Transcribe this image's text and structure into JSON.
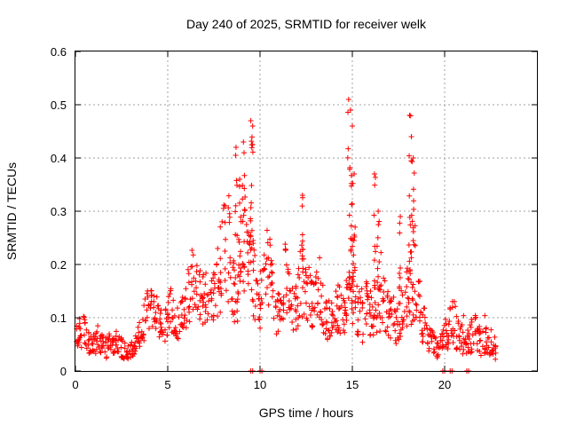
{
  "chart_data": {
    "type": "scatter",
    "title": "Day 240 of 2025, SRMTID for receiver welk",
    "xlabel": "GPS time / hours",
    "ylabel": "SRMTID / TECUs",
    "xlim": [
      0,
      25
    ],
    "ylim": [
      0,
      0.6
    ],
    "xticks": [
      0,
      5,
      10,
      15,
      20
    ],
    "yticks": [
      0,
      0.1,
      0.2,
      0.3,
      0.4,
      0.5,
      0.6
    ],
    "xtick_labels": [
      "0",
      "5",
      "10",
      "15",
      "20"
    ],
    "ytick_labels": [
      "0",
      "0.1",
      "0.2",
      "0.3",
      "0.4",
      "0.5",
      "0.6"
    ],
    "grid": true,
    "color": "#ff0000",
    "marker": "plus",
    "series": [
      {
        "name": "SRMTID",
        "x": [
          0.0,
          0.2,
          0.4,
          0.6,
          0.8,
          1.0,
          1.2,
          1.4,
          1.6,
          1.8,
          2.0,
          2.2,
          2.4,
          2.6,
          2.8,
          3.0,
          3.2,
          3.4,
          3.6,
          3.8,
          4.0,
          4.2,
          4.4,
          4.6,
          4.8,
          5.0,
          5.2,
          5.4,
          5.6,
          5.8,
          6.0,
          6.2,
          6.4,
          6.6,
          6.8,
          7.0,
          7.2,
          7.4,
          7.6,
          7.8,
          8.0,
          8.2,
          8.4,
          8.6,
          8.8,
          9.0,
          9.2,
          9.4,
          9.6,
          9.8,
          10.0,
          10.2,
          10.4,
          10.6,
          10.8,
          11.0,
          11.2,
          11.4,
          11.6,
          11.8,
          12.0,
          12.2,
          12.4,
          12.6,
          12.8,
          13.0,
          13.2,
          13.4,
          13.6,
          13.8,
          14.0,
          14.2,
          14.4,
          14.6,
          14.8,
          15.0,
          15.2,
          15.4,
          15.6,
          15.8,
          16.0,
          16.2,
          16.4,
          16.6,
          16.8,
          17.0,
          17.2,
          17.4,
          17.6,
          17.8,
          18.0,
          18.2,
          18.4,
          18.6,
          18.8,
          19.0,
          19.2,
          19.4,
          19.6,
          19.8,
          20.0,
          20.2,
          20.4,
          20.6,
          20.8,
          21.0,
          21.2,
          21.4,
          21.6,
          21.8,
          22.0,
          22.2,
          22.4,
          22.6,
          22.8
        ],
        "y": [
          0.06,
          0.07,
          0.08,
          0.06,
          0.05,
          0.05,
          0.06,
          0.05,
          0.04,
          0.05,
          0.05,
          0.06,
          0.05,
          0.04,
          0.03,
          0.04,
          0.05,
          0.06,
          0.08,
          0.1,
          0.12,
          0.13,
          0.11,
          0.09,
          0.07,
          0.1,
          0.12,
          0.1,
          0.09,
          0.11,
          0.13,
          0.15,
          0.18,
          0.16,
          0.14,
          0.13,
          0.15,
          0.14,
          0.16,
          0.18,
          0.22,
          0.26,
          0.2,
          0.15,
          0.13,
          0.28,
          0.32,
          0.25,
          0.18,
          0.14,
          0.12,
          0.16,
          0.2,
          0.17,
          0.12,
          0.11,
          0.14,
          0.18,
          0.13,
          0.1,
          0.14,
          0.16,
          0.18,
          0.15,
          0.13,
          0.14,
          0.16,
          0.12,
          0.11,
          0.09,
          0.1,
          0.12,
          0.1,
          0.09,
          0.18,
          0.16,
          0.13,
          0.11,
          0.1,
          0.12,
          0.1,
          0.11,
          0.13,
          0.16,
          0.12,
          0.1,
          0.11,
          0.09,
          0.1,
          0.12,
          0.16,
          0.14,
          0.2,
          0.13,
          0.1,
          0.07,
          0.06,
          0.05,
          0.04,
          0.05,
          0.07,
          0.06,
          0.1,
          0.08,
          0.06,
          0.07,
          0.05,
          0.06,
          0.08,
          0.06,
          0.05,
          0.07,
          0.06,
          0.05,
          0.04
        ],
        "spread": [
          0.03,
          0.03,
          0.04,
          0.03,
          0.02,
          0.02,
          0.03,
          0.02,
          0.02,
          0.02,
          0.02,
          0.03,
          0.02,
          0.02,
          0.02,
          0.02,
          0.02,
          0.03,
          0.03,
          0.04,
          0.04,
          0.05,
          0.04,
          0.03,
          0.03,
          0.04,
          0.05,
          0.04,
          0.03,
          0.04,
          0.05,
          0.06,
          0.06,
          0.05,
          0.05,
          0.05,
          0.05,
          0.05,
          0.06,
          0.08,
          0.1,
          0.12,
          0.09,
          0.06,
          0.05,
          0.1,
          0.12,
          0.1,
          0.08,
          0.06,
          0.06,
          0.07,
          0.08,
          0.07,
          0.05,
          0.05,
          0.06,
          0.07,
          0.05,
          0.05,
          0.06,
          0.07,
          0.08,
          0.06,
          0.05,
          0.06,
          0.06,
          0.05,
          0.05,
          0.04,
          0.05,
          0.05,
          0.05,
          0.04,
          0.1,
          0.08,
          0.06,
          0.05,
          0.05,
          0.06,
          0.05,
          0.05,
          0.06,
          0.08,
          0.05,
          0.05,
          0.05,
          0.04,
          0.05,
          0.05,
          0.08,
          0.06,
          0.1,
          0.06,
          0.05,
          0.03,
          0.03,
          0.02,
          0.02,
          0.02,
          0.04,
          0.03,
          0.05,
          0.04,
          0.03,
          0.04,
          0.03,
          0.03,
          0.04,
          0.03,
          0.03,
          0.04,
          0.03,
          0.03,
          0.02
        ],
        "peaks": [
          [
            8.7,
            0.42
          ],
          [
            8.9,
            0.36
          ],
          [
            9.1,
            0.43
          ],
          [
            9.5,
            0.47
          ],
          [
            9.6,
            0.46
          ],
          [
            12.3,
            0.33
          ],
          [
            14.8,
            0.51
          ],
          [
            14.9,
            0.49
          ],
          [
            15.0,
            0.46
          ],
          [
            15.1,
            0.37
          ],
          [
            16.2,
            0.37
          ],
          [
            16.4,
            0.3
          ],
          [
            17.6,
            0.29
          ],
          [
            18.1,
            0.48
          ],
          [
            18.2,
            0.44
          ],
          [
            18.3,
            0.4
          ]
        ],
        "zero_points": [
          9.5,
          9.6,
          10.0,
          10.1,
          19.9,
          20.0,
          20.3,
          20.4,
          21.2,
          21.3
        ]
      }
    ]
  }
}
